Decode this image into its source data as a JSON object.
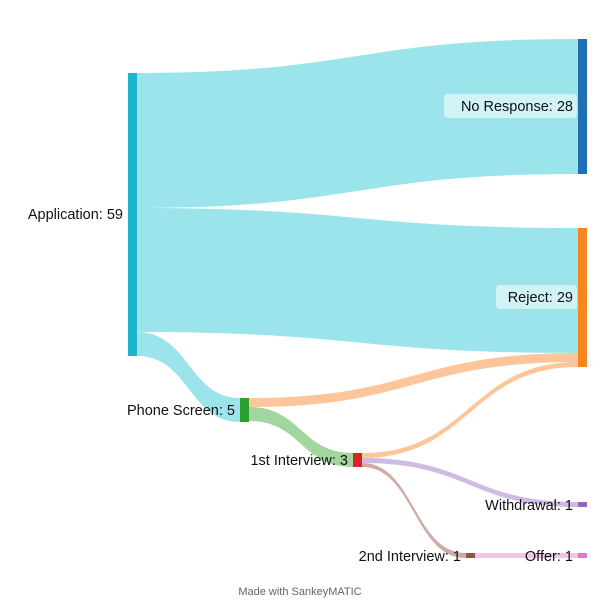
{
  "colors": {
    "application": "#1db4cc",
    "application_flow": "#97e3ea",
    "no_response": "#1f6fb3",
    "reject": "#f7861f",
    "reject_flow": "#fcc395",
    "phone_screen": "#2ca02c",
    "phone_screen_flow": "#9ed39a",
    "first_interview": "#d62728",
    "withdrawal": "#9467bd",
    "withdrawal_flow": "#cbb7e0",
    "second_interview": "#8c564b",
    "second_interview_flow": "#c9a9a1",
    "offer": "#e377c2",
    "offer_flow": "#f3c2e2"
  },
  "nodes": {
    "application": "Application: 59",
    "no_response": "No Response: 28",
    "reject": "Reject: 29",
    "phone_screen": "Phone Screen: 5",
    "first_interview": "1st Interview: 3",
    "withdrawal": "Withdrawal: 1",
    "second_interview": "2nd Interview: 1",
    "offer": "Offer: 1"
  },
  "chart_data": {
    "type": "sankey",
    "nodes": [
      {
        "id": "application",
        "name": "Application",
        "value": 59
      },
      {
        "id": "no_response",
        "name": "No Response",
        "value": 28
      },
      {
        "id": "reject",
        "name": "Reject",
        "value": 29
      },
      {
        "id": "phone_screen",
        "name": "Phone Screen",
        "value": 5
      },
      {
        "id": "first_interview",
        "name": "1st Interview",
        "value": 3
      },
      {
        "id": "withdrawal",
        "name": "Withdrawal",
        "value": 1
      },
      {
        "id": "second_interview",
        "name": "2nd Interview",
        "value": 1
      },
      {
        "id": "offer",
        "name": "Offer",
        "value": 1
      }
    ],
    "links": [
      {
        "source": "application",
        "target": "no_response",
        "value": 28
      },
      {
        "source": "application",
        "target": "reject",
        "value": 26
      },
      {
        "source": "application",
        "target": "phone_screen",
        "value": 5
      },
      {
        "source": "phone_screen",
        "target": "reject",
        "value": 2
      },
      {
        "source": "phone_screen",
        "target": "first_interview",
        "value": 3
      },
      {
        "source": "first_interview",
        "target": "reject",
        "value": 1
      },
      {
        "source": "first_interview",
        "target": "withdrawal",
        "value": 1
      },
      {
        "source": "first_interview",
        "target": "second_interview",
        "value": 1
      },
      {
        "source": "second_interview",
        "target": "offer",
        "value": 1
      }
    ]
  },
  "footer": {
    "credit": "Made with SankeyMATIC"
  }
}
